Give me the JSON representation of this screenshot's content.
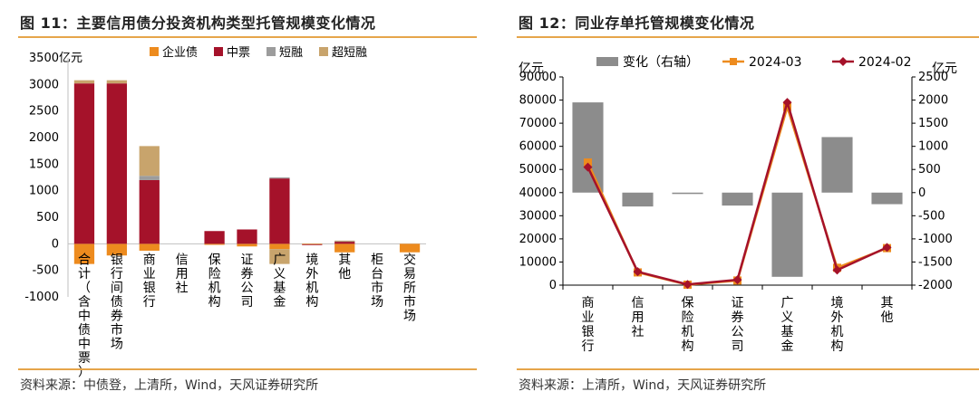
{
  "page_title": "",
  "chart_data": [
    {
      "type": "bar",
      "stacked": true,
      "title": "图 11：主要信用债分投资机构类型托管规模变化情况",
      "ylabel": "亿元",
      "ylim": [
        -1000,
        3500
      ],
      "yticks": [
        -1000,
        -500,
        0,
        500,
        1000,
        1500,
        2000,
        2500,
        3000,
        3500
      ],
      "categories": [
        "合计（含中债中票）",
        "银行间债券市场",
        "商业银行",
        "信用社",
        "保险机构",
        "证券公司",
        "广义基金",
        "境外机构",
        "其他",
        "柜台市场",
        "交易所市场"
      ],
      "series": [
        {
          "name": "企业债",
          "color": "#ed8b1e",
          "values": [
            -380,
            -220,
            -130,
            0,
            -20,
            -50,
            -100,
            -10,
            -160,
            0,
            -160
          ]
        },
        {
          "name": "中票",
          "color": "#a5122a",
          "values": [
            3020,
            3020,
            1200,
            0,
            240,
            270,
            1230,
            -10,
            40,
            0,
            0
          ]
        },
        {
          "name": "短融",
          "color": "#9c9c9c",
          "values": [
            0,
            0,
            80,
            0,
            0,
            0,
            20,
            0,
            10,
            0,
            0
          ]
        },
        {
          "name": "超短融",
          "color": "#c8a46c",
          "values": [
            60,
            60,
            560,
            0,
            0,
            0,
            -280,
            0,
            10,
            0,
            0
          ]
        }
      ],
      "source": "资料来源：中债登，上清所，Wind，天风证券研究所"
    },
    {
      "type": "bar-line",
      "title": "图 12：同业存单托管规模变化情况",
      "ylabel_left": "亿元",
      "ylabel_right": "亿元",
      "ylim_left": [
        0,
        90000
      ],
      "yticks_left": [
        0,
        10000,
        20000,
        30000,
        40000,
        50000,
        60000,
        70000,
        80000,
        90000
      ],
      "ylim_right": [
        -2000,
        2500
      ],
      "yticks_right": [
        -2000,
        -1500,
        -1000,
        -500,
        0,
        500,
        1000,
        1500,
        2000,
        2500
      ],
      "categories": [
        "商业银行",
        "信用社",
        "保险机构",
        "证券公司",
        "广义基金",
        "境外机构",
        "其他"
      ],
      "series": [
        {
          "name": "变化（右轴）",
          "type": "bar",
          "axis": "right",
          "color": "#8c8c8c",
          "values": [
            1950,
            -300,
            -30,
            -280,
            -1820,
            1200,
            -250
          ]
        },
        {
          "name": "2024-03",
          "type": "line",
          "axis": "left",
          "color": "#ed8b1e",
          "marker": "square",
          "values": [
            53000,
            5500,
            200,
            2000,
            77000,
            7500,
            16000
          ]
        },
        {
          "name": "2024-02",
          "type": "line",
          "axis": "left",
          "color": "#a5122a",
          "marker": "diamond",
          "values": [
            51000,
            5800,
            300,
            2300,
            79000,
            6500,
            16300
          ]
        }
      ],
      "source": "资料来源：上清所，Wind，天风证券研究所"
    }
  ]
}
